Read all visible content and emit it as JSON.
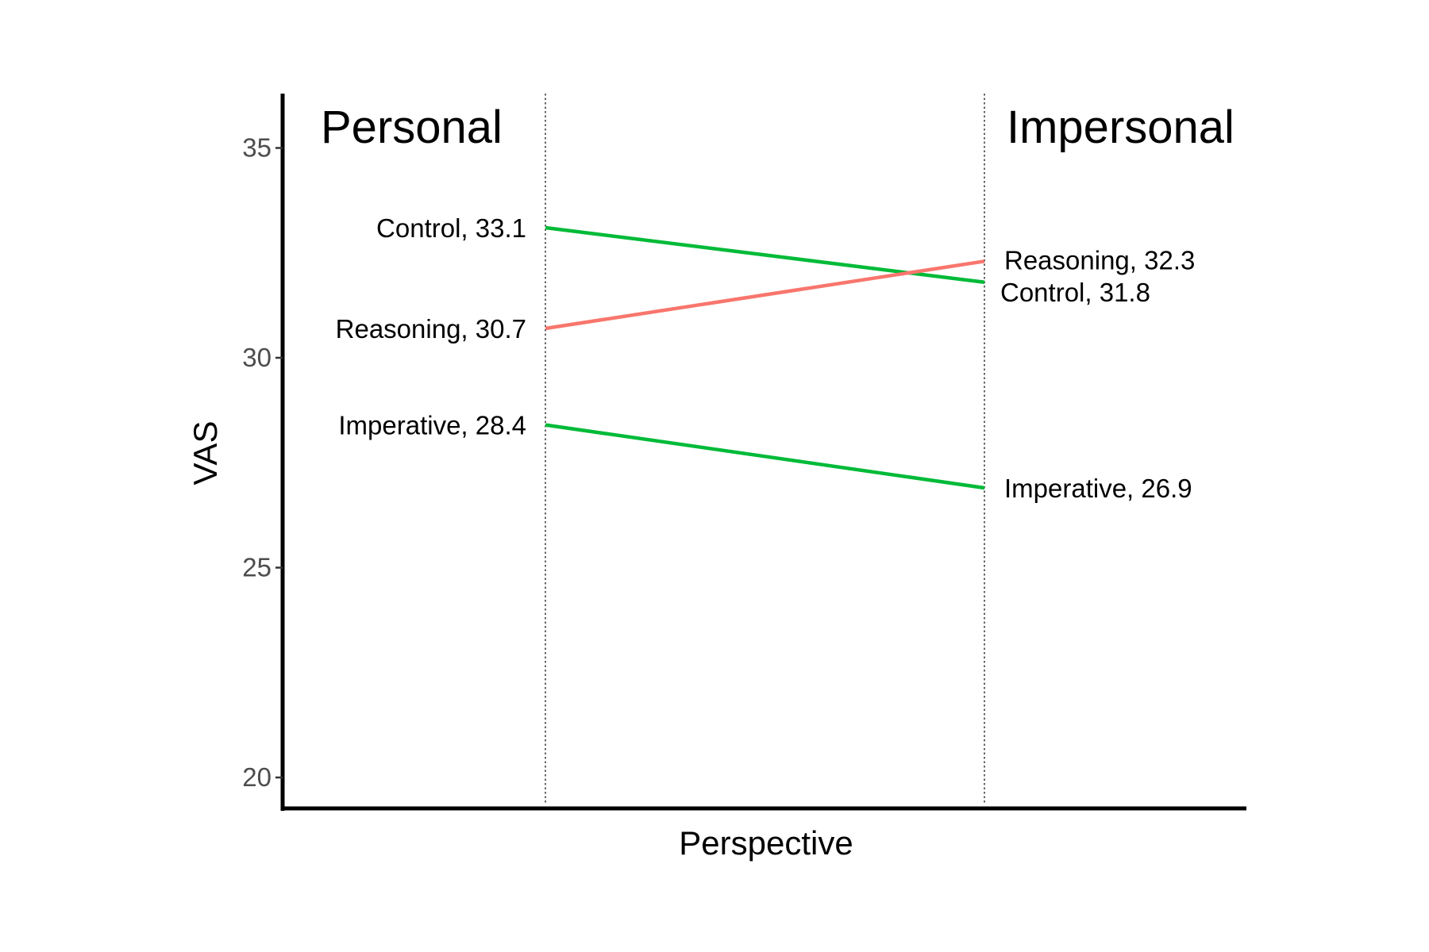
{
  "chart_data": {
    "type": "line",
    "title": "",
    "xlabel": "Perspective",
    "ylabel": "VAS",
    "x": [
      "Personal",
      "Impersonal"
    ],
    "ylim": [
      19.2,
      36.3
    ],
    "yticks": [
      20,
      25,
      30,
      35
    ],
    "grid": false,
    "legend": "none",
    "series": [
      {
        "name": "Control",
        "values": [
          33.1,
          31.8
        ],
        "color": "#00BA38",
        "labels": [
          "Control, 33.1",
          "Control, 31.8"
        ]
      },
      {
        "name": "Reasoning",
        "values": [
          30.7,
          32.3
        ],
        "color": "#F8766D",
        "labels": [
          "Reasoning, 30.7",
          "Reasoning, 32.3"
        ]
      },
      {
        "name": "Imperative",
        "values": [
          28.4,
          26.9
        ],
        "color": "#00BA38",
        "labels": [
          "Imperative, 28.4",
          "Imperative, 26.9"
        ]
      }
    ]
  }
}
